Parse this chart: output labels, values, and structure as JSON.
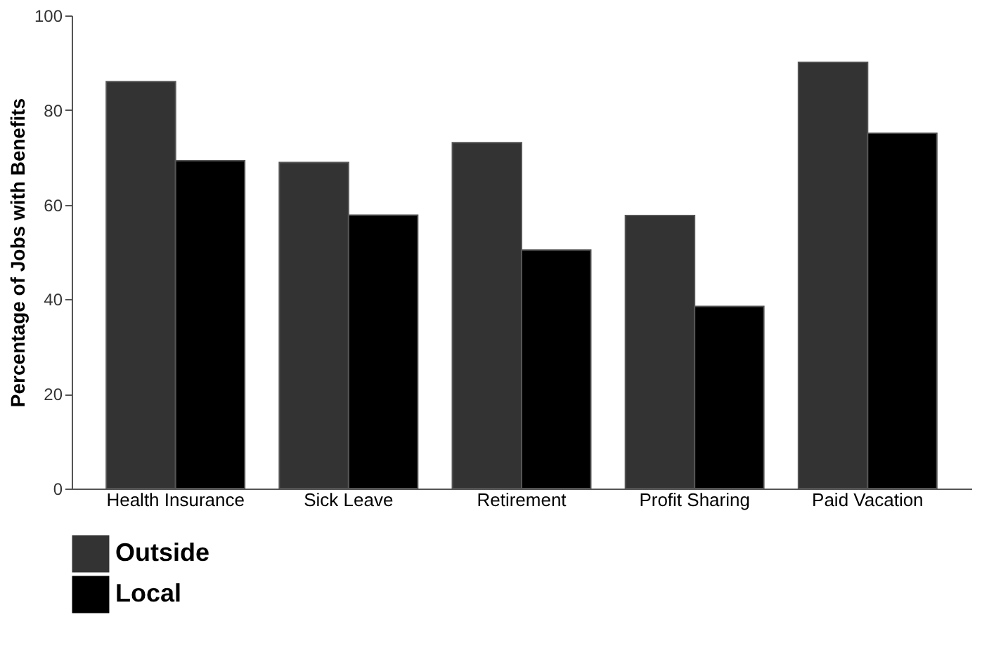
{
  "chart_data": {
    "type": "bar",
    "ylabel": "Percentage of Jobs with Benefits",
    "categories": [
      "Health Insurance",
      "Sick Leave",
      "Retirement",
      "Profit Sharing",
      "Paid Vacation"
    ],
    "series": [
      {
        "name": "Outside",
        "color": "#333333",
        "values": [
          86.0,
          68.9,
          73.1,
          57.7,
          90.1
        ]
      },
      {
        "name": "Local",
        "color": "#000000",
        "values": [
          69.3,
          57.8,
          50.4,
          38.5,
          75.1
        ]
      }
    ],
    "ylim": [
      0,
      100
    ],
    "yticks": [
      0,
      20,
      40,
      60,
      80,
      100
    ],
    "grid": false,
    "legend": "bottom"
  }
}
